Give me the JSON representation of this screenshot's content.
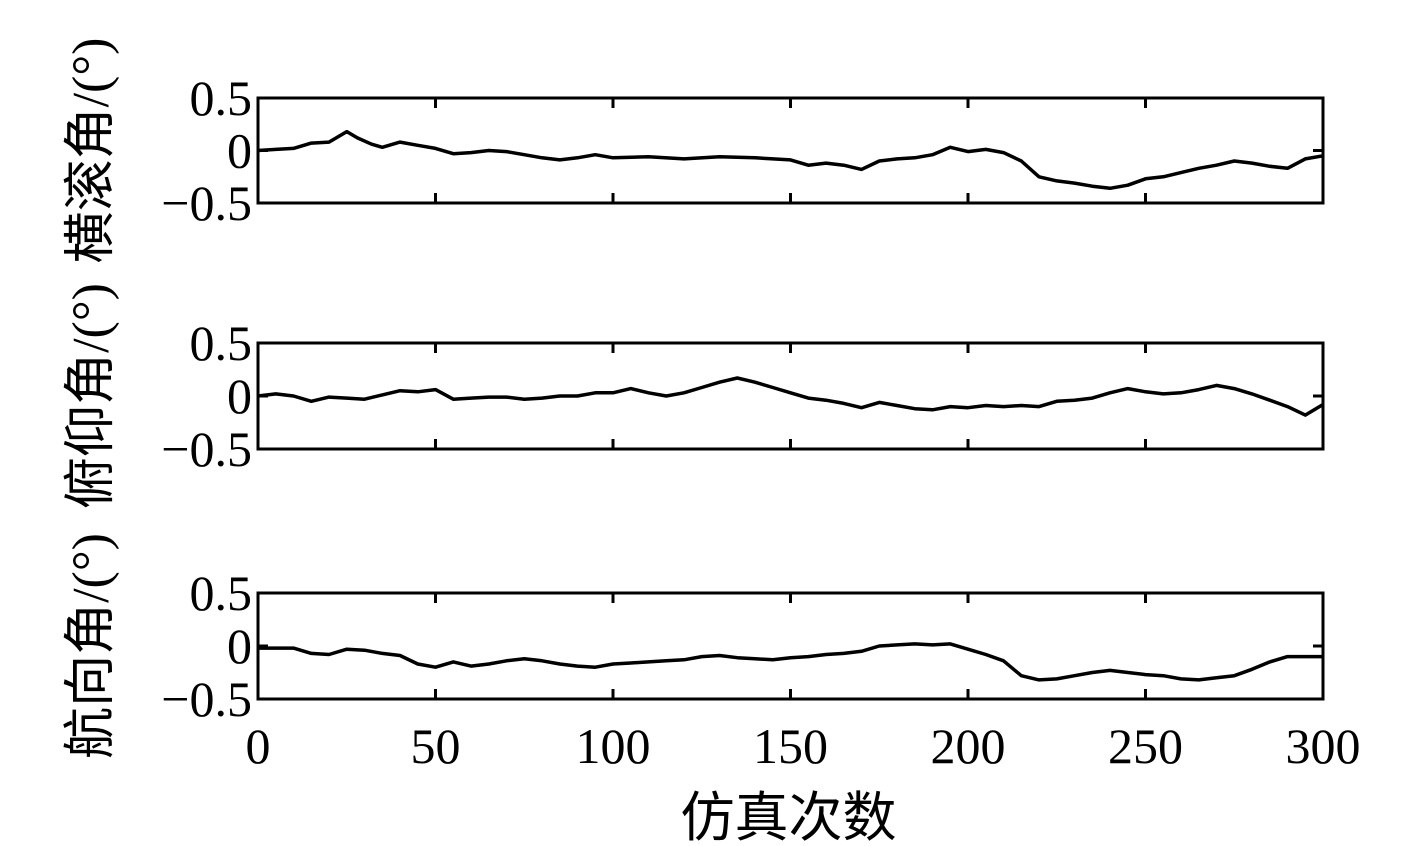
{
  "chart_data": {
    "type": "line",
    "x_axis": {
      "label": "仿真次数",
      "ticks": [
        0,
        50,
        100,
        150,
        200,
        250,
        300
      ],
      "range": [
        0,
        300
      ]
    },
    "y_ticks": [
      {
        "value": 0.5,
        "label": "0.5"
      },
      {
        "value": 0,
        "label": "0"
      },
      {
        "value": -0.5,
        "label": "−0.5"
      }
    ],
    "grid": false,
    "line_color": "#000000",
    "panels": [
      {
        "ylabel": "横滚角/(°)",
        "ylim": [
          -0.5,
          0.5
        ],
        "points": [
          [
            0,
            0
          ],
          [
            5,
            0.01
          ],
          [
            10,
            0.02
          ],
          [
            15,
            0.07
          ],
          [
            20,
            0.08
          ],
          [
            25,
            0.18
          ],
          [
            28,
            0.12
          ],
          [
            32,
            0.06
          ],
          [
            35,
            0.03
          ],
          [
            40,
            0.08
          ],
          [
            45,
            0.05
          ],
          [
            50,
            0.02
          ],
          [
            55,
            -0.03
          ],
          [
            60,
            -0.02
          ],
          [
            65,
            0
          ],
          [
            70,
            -0.01
          ],
          [
            75,
            -0.04
          ],
          [
            80,
            -0.07
          ],
          [
            85,
            -0.09
          ],
          [
            90,
            -0.07
          ],
          [
            95,
            -0.04
          ],
          [
            100,
            -0.07
          ],
          [
            110,
            -0.06
          ],
          [
            120,
            -0.08
          ],
          [
            130,
            -0.06
          ],
          [
            140,
            -0.07
          ],
          [
            150,
            -0.09
          ],
          [
            155,
            -0.14
          ],
          [
            160,
            -0.12
          ],
          [
            165,
            -0.14
          ],
          [
            170,
            -0.18
          ],
          [
            175,
            -0.1
          ],
          [
            180,
            -0.08
          ],
          [
            185,
            -0.07
          ],
          [
            190,
            -0.04
          ],
          [
            195,
            0.03
          ],
          [
            200,
            -0.01
          ],
          [
            205,
            0.01
          ],
          [
            210,
            -0.02
          ],
          [
            215,
            -0.1
          ],
          [
            220,
            -0.25
          ],
          [
            225,
            -0.29
          ],
          [
            230,
            -0.31
          ],
          [
            235,
            -0.34
          ],
          [
            240,
            -0.36
          ],
          [
            245,
            -0.33
          ],
          [
            250,
            -0.27
          ],
          [
            255,
            -0.25
          ],
          [
            260,
            -0.21
          ],
          [
            265,
            -0.17
          ],
          [
            270,
            -0.14
          ],
          [
            275,
            -0.1
          ],
          [
            280,
            -0.12
          ],
          [
            285,
            -0.15
          ],
          [
            290,
            -0.17
          ],
          [
            295,
            -0.08
          ],
          [
            300,
            -0.05
          ]
        ]
      },
      {
        "ylabel": "俯仰角/(°)",
        "ylim": [
          -0.5,
          0.5
        ],
        "points": [
          [
            0,
            0
          ],
          [
            5,
            0.02
          ],
          [
            10,
            0
          ],
          [
            15,
            -0.05
          ],
          [
            20,
            -0.01
          ],
          [
            25,
            -0.02
          ],
          [
            30,
            -0.03
          ],
          [
            35,
            0.01
          ],
          [
            40,
            0.05
          ],
          [
            45,
            0.04
          ],
          [
            50,
            0.06
          ],
          [
            55,
            -0.03
          ],
          [
            60,
            -0.02
          ],
          [
            65,
            -0.01
          ],
          [
            70,
            -0.01
          ],
          [
            75,
            -0.03
          ],
          [
            80,
            -0.02
          ],
          [
            85,
            0
          ],
          [
            90,
            0
          ],
          [
            95,
            0.03
          ],
          [
            100,
            0.03
          ],
          [
            105,
            0.07
          ],
          [
            110,
            0.03
          ],
          [
            115,
            0
          ],
          [
            120,
            0.03
          ],
          [
            125,
            0.08
          ],
          [
            130,
            0.13
          ],
          [
            135,
            0.17
          ],
          [
            140,
            0.13
          ],
          [
            145,
            0.08
          ],
          [
            150,
            0.03
          ],
          [
            155,
            -0.02
          ],
          [
            160,
            -0.04
          ],
          [
            165,
            -0.07
          ],
          [
            170,
            -0.11
          ],
          [
            175,
            -0.06
          ],
          [
            180,
            -0.09
          ],
          [
            185,
            -0.12
          ],
          [
            190,
            -0.13
          ],
          [
            195,
            -0.1
          ],
          [
            200,
            -0.11
          ],
          [
            205,
            -0.09
          ],
          [
            210,
            -0.1
          ],
          [
            215,
            -0.09
          ],
          [
            220,
            -0.1
          ],
          [
            225,
            -0.05
          ],
          [
            230,
            -0.04
          ],
          [
            235,
            -0.02
          ],
          [
            240,
            0.03
          ],
          [
            245,
            0.07
          ],
          [
            250,
            0.04
          ],
          [
            255,
            0.02
          ],
          [
            260,
            0.03
          ],
          [
            265,
            0.06
          ],
          [
            270,
            0.1
          ],
          [
            275,
            0.07
          ],
          [
            280,
            0.02
          ],
          [
            285,
            -0.04
          ],
          [
            290,
            -0.1
          ],
          [
            295,
            -0.18
          ],
          [
            300,
            -0.08
          ]
        ]
      },
      {
        "ylabel": "航向角/(°)",
        "ylim": [
          -0.5,
          0.5
        ],
        "points": [
          [
            0,
            -0.02
          ],
          [
            5,
            -0.02
          ],
          [
            10,
            -0.02
          ],
          [
            15,
            -0.07
          ],
          [
            20,
            -0.08
          ],
          [
            25,
            -0.03
          ],
          [
            30,
            -0.04
          ],
          [
            35,
            -0.07
          ],
          [
            40,
            -0.09
          ],
          [
            45,
            -0.17
          ],
          [
            50,
            -0.2
          ],
          [
            55,
            -0.15
          ],
          [
            60,
            -0.19
          ],
          [
            65,
            -0.17
          ],
          [
            70,
            -0.14
          ],
          [
            75,
            -0.12
          ],
          [
            80,
            -0.14
          ],
          [
            85,
            -0.17
          ],
          [
            90,
            -0.19
          ],
          [
            95,
            -0.2
          ],
          [
            100,
            -0.17
          ],
          [
            105,
            -0.16
          ],
          [
            110,
            -0.15
          ],
          [
            115,
            -0.14
          ],
          [
            120,
            -0.13
          ],
          [
            125,
            -0.1
          ],
          [
            130,
            -0.09
          ],
          [
            135,
            -0.11
          ],
          [
            140,
            -0.12
          ],
          [
            145,
            -0.13
          ],
          [
            150,
            -0.11
          ],
          [
            155,
            -0.1
          ],
          [
            160,
            -0.08
          ],
          [
            165,
            -0.07
          ],
          [
            170,
            -0.05
          ],
          [
            175,
            0
          ],
          [
            180,
            0.01
          ],
          [
            185,
            0.02
          ],
          [
            190,
            0.01
          ],
          [
            195,
            0.02
          ],
          [
            200,
            -0.03
          ],
          [
            205,
            -0.08
          ],
          [
            210,
            -0.14
          ],
          [
            215,
            -0.28
          ],
          [
            220,
            -0.32
          ],
          [
            225,
            -0.31
          ],
          [
            230,
            -0.28
          ],
          [
            235,
            -0.25
          ],
          [
            240,
            -0.23
          ],
          [
            245,
            -0.25
          ],
          [
            250,
            -0.27
          ],
          [
            255,
            -0.28
          ],
          [
            260,
            -0.31
          ],
          [
            265,
            -0.32
          ],
          [
            270,
            -0.3
          ],
          [
            275,
            -0.28
          ],
          [
            280,
            -0.22
          ],
          [
            285,
            -0.15
          ],
          [
            290,
            -0.1
          ],
          [
            295,
            -0.1
          ],
          [
            300,
            -0.1
          ]
        ]
      }
    ]
  }
}
